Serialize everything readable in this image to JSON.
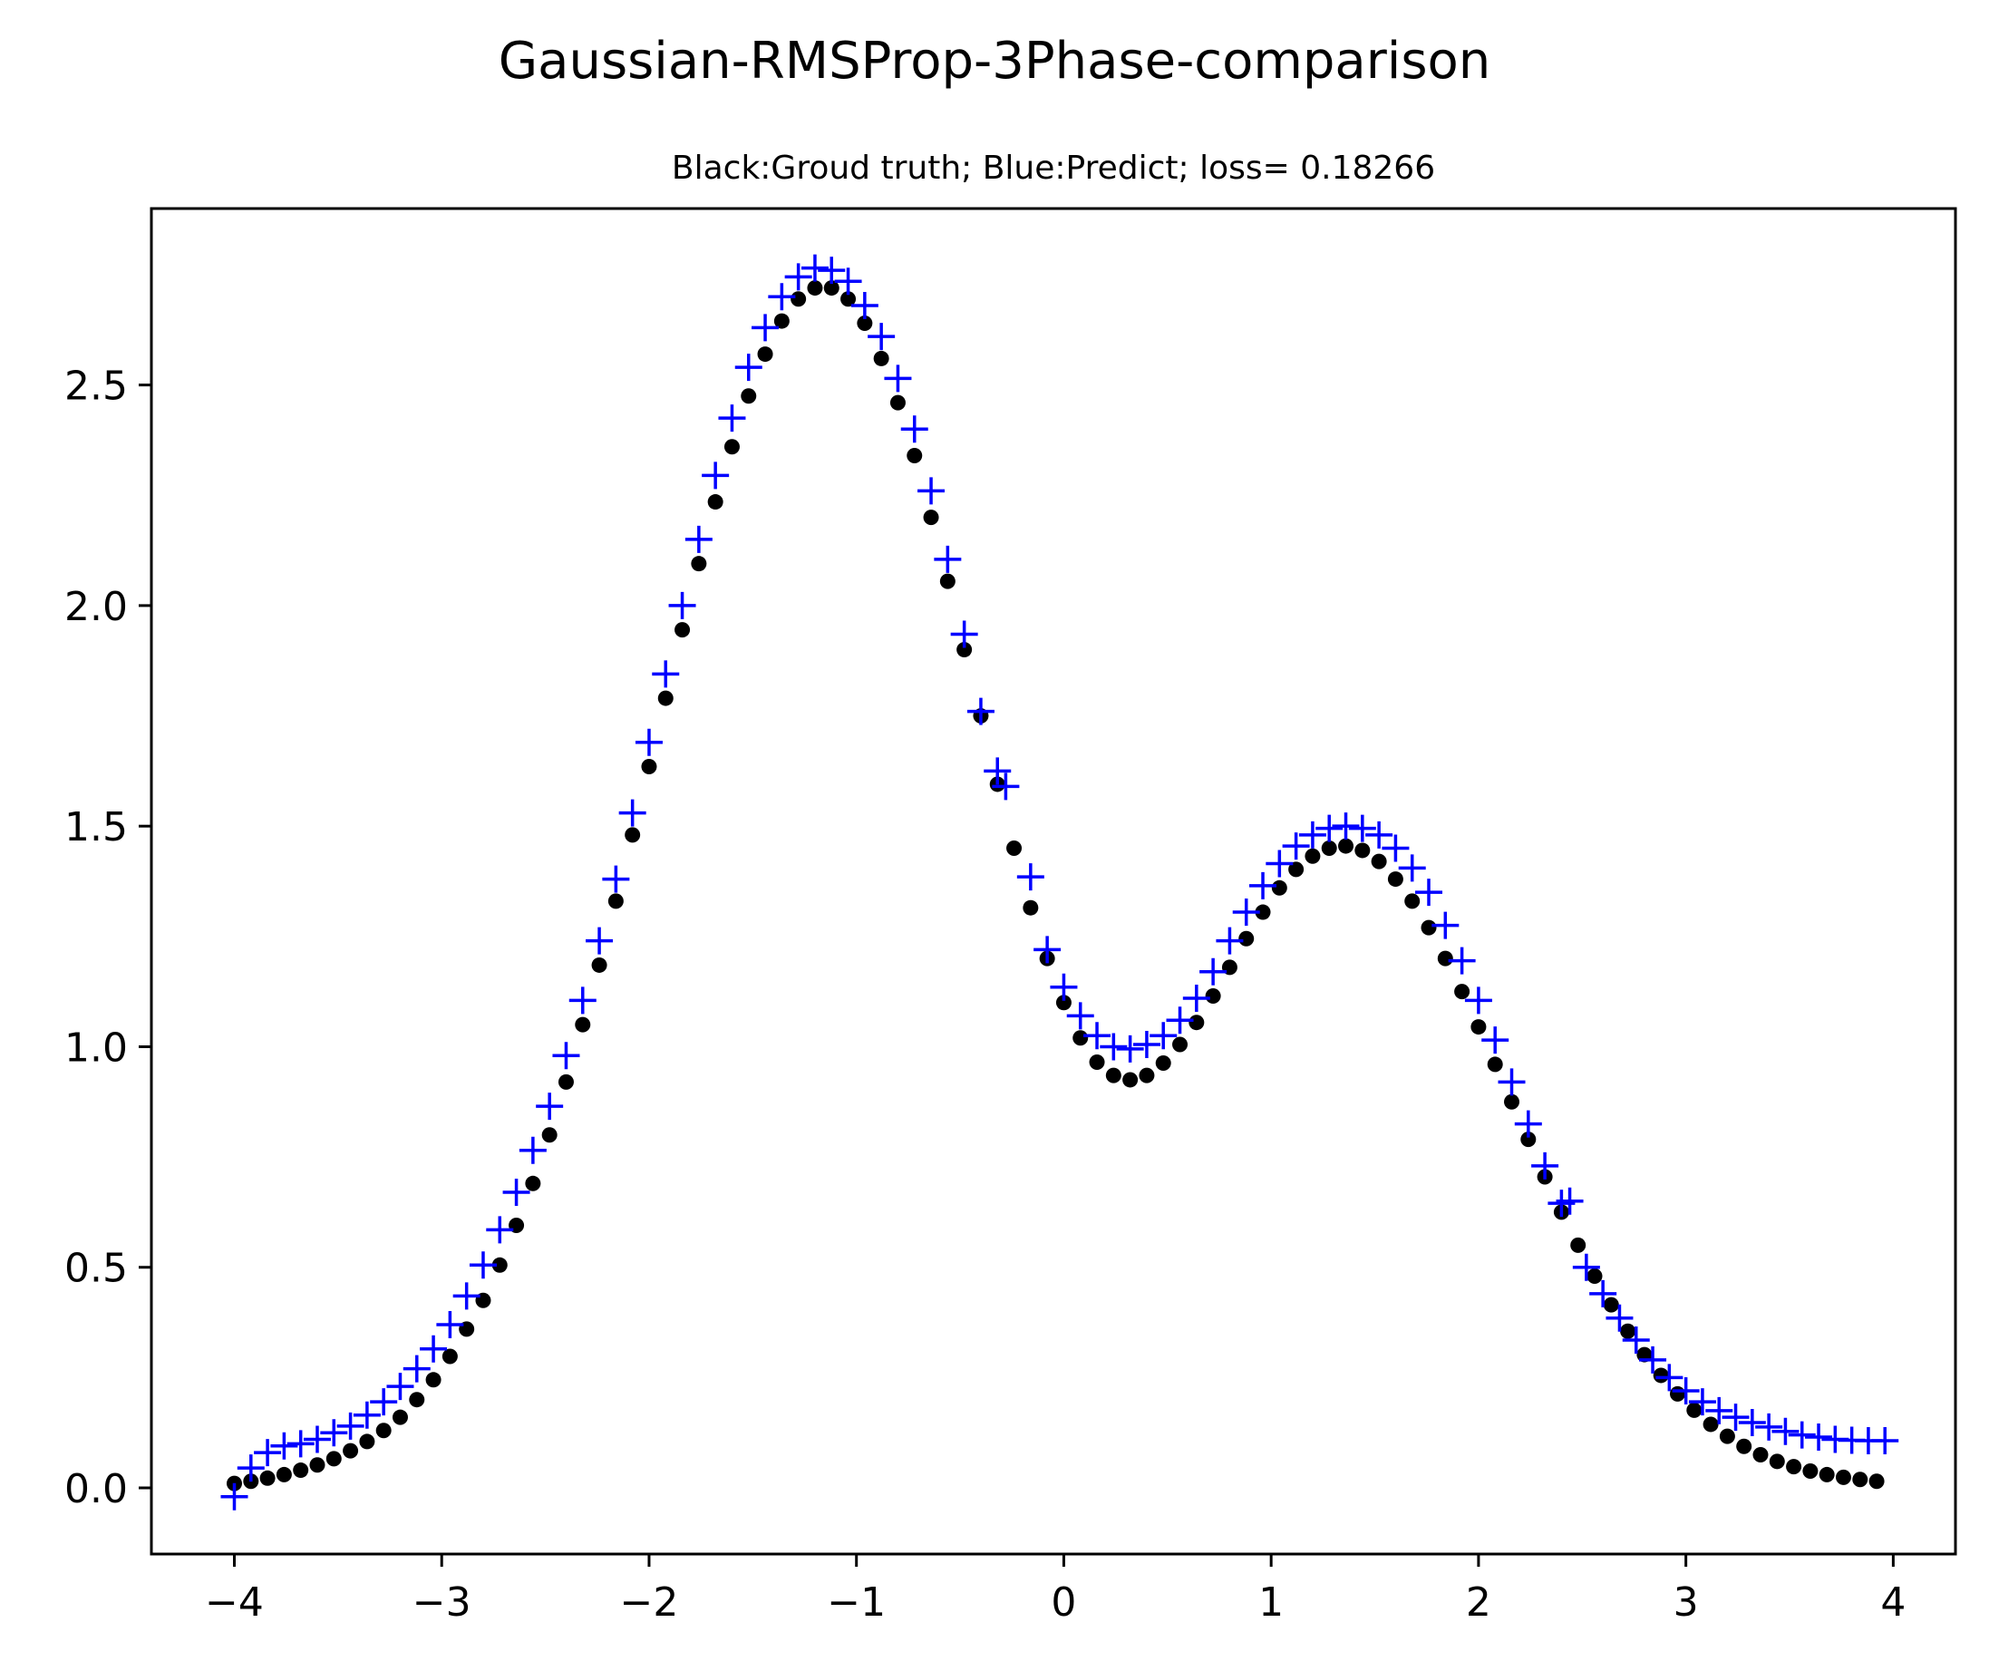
{
  "chart_data": {
    "type": "scatter",
    "title": "Gaussian-RMSProp-3Phase-comparison",
    "subtitle": "Black:Groud truth; Blue:Predict; loss= 0.18266",
    "xlabel": "",
    "ylabel": "",
    "xlim": [
      -4.4,
      4.3
    ],
    "ylim": [
      -0.15,
      2.9
    ],
    "grid": false,
    "xticks": [
      {
        "value": -4,
        "label": "−4"
      },
      {
        "value": -3,
        "label": "−3"
      },
      {
        "value": -2,
        "label": "−2"
      },
      {
        "value": -1,
        "label": "−1"
      },
      {
        "value": 0,
        "label": "0"
      },
      {
        "value": 1,
        "label": "1"
      },
      {
        "value": 2,
        "label": "2"
      },
      {
        "value": 3,
        "label": "3"
      },
      {
        "value": 4,
        "label": "4"
      }
    ],
    "yticks": [
      {
        "value": 0.0,
        "label": "0.0"
      },
      {
        "value": 0.5,
        "label": "0.5"
      },
      {
        "value": 1.0,
        "label": "1.0"
      },
      {
        "value": 1.5,
        "label": "1.5"
      },
      {
        "value": 2.0,
        "label": "2.0"
      },
      {
        "value": 2.5,
        "label": "2.5"
      }
    ],
    "series": [
      {
        "color": "#000000",
        "marker": "dot",
        "points": [
          [
            -4.0,
            0.01
          ],
          [
            -3.92,
            0.015
          ],
          [
            -3.84,
            0.022
          ],
          [
            -3.76,
            0.03
          ],
          [
            -3.68,
            0.04
          ],
          [
            -3.6,
            0.052
          ],
          [
            -3.52,
            0.066
          ],
          [
            -3.44,
            0.084
          ],
          [
            -3.36,
            0.105
          ],
          [
            -3.28,
            0.13
          ],
          [
            -3.2,
            0.16
          ],
          [
            -3.12,
            0.2
          ],
          [
            -3.04,
            0.245
          ],
          [
            -2.96,
            0.298
          ],
          [
            -2.88,
            0.36
          ],
          [
            -2.8,
            0.425
          ],
          [
            -2.72,
            0.505
          ],
          [
            -2.64,
            0.595
          ],
          [
            -2.56,
            0.69
          ],
          [
            -2.48,
            0.8
          ],
          [
            -2.4,
            0.92
          ],
          [
            -2.32,
            1.05
          ],
          [
            -2.24,
            1.185
          ],
          [
            -2.16,
            1.33
          ],
          [
            -2.08,
            1.48
          ],
          [
            -2.0,
            1.635
          ],
          [
            -1.92,
            1.79
          ],
          [
            -1.84,
            1.945
          ],
          [
            -1.76,
            2.095
          ],
          [
            -1.68,
            2.235
          ],
          [
            -1.6,
            2.36
          ],
          [
            -1.52,
            2.475
          ],
          [
            -1.44,
            2.57
          ],
          [
            -1.36,
            2.645
          ],
          [
            -1.28,
            2.695
          ],
          [
            -1.2,
            2.72
          ],
          [
            -1.12,
            2.72
          ],
          [
            -1.04,
            2.695
          ],
          [
            -0.96,
            2.64
          ],
          [
            -0.88,
            2.56
          ],
          [
            -0.8,
            2.46
          ],
          [
            -0.72,
            2.34
          ],
          [
            -0.64,
            2.2
          ],
          [
            -0.56,
            2.055
          ],
          [
            -0.48,
            1.9
          ],
          [
            -0.4,
            1.75
          ],
          [
            -0.32,
            1.595
          ],
          [
            -0.24,
            1.45
          ],
          [
            -0.16,
            1.315
          ],
          [
            -0.08,
            1.2
          ],
          [
            0.0,
            1.1
          ],
          [
            0.08,
            1.02
          ],
          [
            0.16,
            0.965
          ],
          [
            0.24,
            0.935
          ],
          [
            0.32,
            0.925
          ],
          [
            0.4,
            0.935
          ],
          [
            0.48,
            0.963
          ],
          [
            0.56,
            1.005
          ],
          [
            0.64,
            1.055
          ],
          [
            0.72,
            1.115
          ],
          [
            0.8,
            1.18
          ],
          [
            0.88,
            1.245
          ],
          [
            0.96,
            1.305
          ],
          [
            1.04,
            1.36
          ],
          [
            1.12,
            1.402
          ],
          [
            1.2,
            1.432
          ],
          [
            1.28,
            1.45
          ],
          [
            1.36,
            1.455
          ],
          [
            1.44,
            1.445
          ],
          [
            1.52,
            1.42
          ],
          [
            1.6,
            1.38
          ],
          [
            1.68,
            1.33
          ],
          [
            1.76,
            1.27
          ],
          [
            1.84,
            1.2
          ],
          [
            1.92,
            1.125
          ],
          [
            2.0,
            1.045
          ],
          [
            2.08,
            0.96
          ],
          [
            2.16,
            0.875
          ],
          [
            2.24,
            0.79
          ],
          [
            2.32,
            0.705
          ],
          [
            2.4,
            0.625
          ],
          [
            2.48,
            0.55
          ],
          [
            2.56,
            0.48
          ],
          [
            2.64,
            0.415
          ],
          [
            2.72,
            0.355
          ],
          [
            2.8,
            0.302
          ],
          [
            2.88,
            0.255
          ],
          [
            2.96,
            0.213
          ],
          [
            3.04,
            0.176
          ],
          [
            3.12,
            0.144
          ],
          [
            3.2,
            0.117
          ],
          [
            3.28,
            0.094
          ],
          [
            3.36,
            0.075
          ],
          [
            3.44,
            0.06
          ],
          [
            3.52,
            0.048
          ],
          [
            3.6,
            0.038
          ],
          [
            3.68,
            0.03
          ],
          [
            3.76,
            0.024
          ],
          [
            3.84,
            0.019
          ],
          [
            3.92,
            0.015
          ]
        ]
      },
      {
        "color": "#0000ff",
        "marker": "plus",
        "points": [
          [
            -4.0,
            -0.02
          ],
          [
            -3.92,
            0.045
          ],
          [
            -3.84,
            0.08
          ],
          [
            -3.76,
            0.095
          ],
          [
            -3.68,
            0.1
          ],
          [
            -3.6,
            0.11
          ],
          [
            -3.52,
            0.125
          ],
          [
            -3.44,
            0.14
          ],
          [
            -3.36,
            0.165
          ],
          [
            -3.28,
            0.195
          ],
          [
            -3.2,
            0.23
          ],
          [
            -3.12,
            0.27
          ],
          [
            -3.04,
            0.315
          ],
          [
            -2.96,
            0.37
          ],
          [
            -2.88,
            0.435
          ],
          [
            -2.8,
            0.505
          ],
          [
            -2.72,
            0.585
          ],
          [
            -2.64,
            0.67
          ],
          [
            -2.56,
            0.765
          ],
          [
            -2.48,
            0.865
          ],
          [
            -2.4,
            0.98
          ],
          [
            -2.32,
            1.105
          ],
          [
            -2.24,
            1.24
          ],
          [
            -2.16,
            1.38
          ],
          [
            -2.08,
            1.53
          ],
          [
            -2.0,
            1.69
          ],
          [
            -1.92,
            1.845
          ],
          [
            -1.84,
            2.0
          ],
          [
            -1.76,
            2.15
          ],
          [
            -1.68,
            2.295
          ],
          [
            -1.6,
            2.425
          ],
          [
            -1.52,
            2.54
          ],
          [
            -1.44,
            2.63
          ],
          [
            -1.36,
            2.7
          ],
          [
            -1.28,
            2.745
          ],
          [
            -1.2,
            2.765
          ],
          [
            -1.12,
            2.76
          ],
          [
            -1.04,
            2.735
          ],
          [
            -0.96,
            2.68
          ],
          [
            -0.88,
            2.61
          ],
          [
            -0.8,
            2.515
          ],
          [
            -0.72,
            2.4
          ],
          [
            -0.64,
            2.26
          ],
          [
            -0.56,
            2.105
          ],
          [
            -0.48,
            1.935
          ],
          [
            -0.4,
            1.76
          ],
          [
            -0.32,
            1.625
          ],
          [
            -0.28,
            1.59
          ],
          [
            -0.16,
            1.385
          ],
          [
            -0.08,
            1.22
          ],
          [
            0.0,
            1.135
          ],
          [
            0.08,
            1.07
          ],
          [
            0.16,
            1.025
          ],
          [
            0.24,
            1.0
          ],
          [
            0.32,
            0.995
          ],
          [
            0.4,
            1.005
          ],
          [
            0.48,
            1.025
          ],
          [
            0.56,
            1.06
          ],
          [
            0.64,
            1.11
          ],
          [
            0.72,
            1.17
          ],
          [
            0.8,
            1.24
          ],
          [
            0.88,
            1.305
          ],
          [
            0.96,
            1.365
          ],
          [
            1.04,
            1.415
          ],
          [
            1.12,
            1.455
          ],
          [
            1.2,
            1.48
          ],
          [
            1.28,
            1.495
          ],
          [
            1.36,
            1.5
          ],
          [
            1.44,
            1.495
          ],
          [
            1.52,
            1.48
          ],
          [
            1.6,
            1.45
          ],
          [
            1.68,
            1.405
          ],
          [
            1.76,
            1.35
          ],
          [
            1.84,
            1.275
          ],
          [
            1.92,
            1.195
          ],
          [
            2.0,
            1.105
          ],
          [
            2.08,
            1.015
          ],
          [
            2.16,
            0.92
          ],
          [
            2.24,
            0.825
          ],
          [
            2.32,
            0.73
          ],
          [
            2.4,
            0.645
          ],
          [
            2.44,
            0.65
          ],
          [
            2.52,
            0.5
          ],
          [
            2.6,
            0.44
          ],
          [
            2.68,
            0.385
          ],
          [
            2.76,
            0.335
          ],
          [
            2.84,
            0.29
          ],
          [
            2.92,
            0.25
          ],
          [
            3.0,
            0.22
          ],
          [
            3.08,
            0.195
          ],
          [
            3.16,
            0.175
          ],
          [
            3.24,
            0.16
          ],
          [
            3.32,
            0.148
          ],
          [
            3.4,
            0.138
          ],
          [
            3.48,
            0.128
          ],
          [
            3.56,
            0.12
          ],
          [
            3.64,
            0.115
          ],
          [
            3.72,
            0.11
          ],
          [
            3.8,
            0.108
          ],
          [
            3.88,
            0.107
          ],
          [
            3.96,
            0.107
          ]
        ]
      }
    ]
  }
}
